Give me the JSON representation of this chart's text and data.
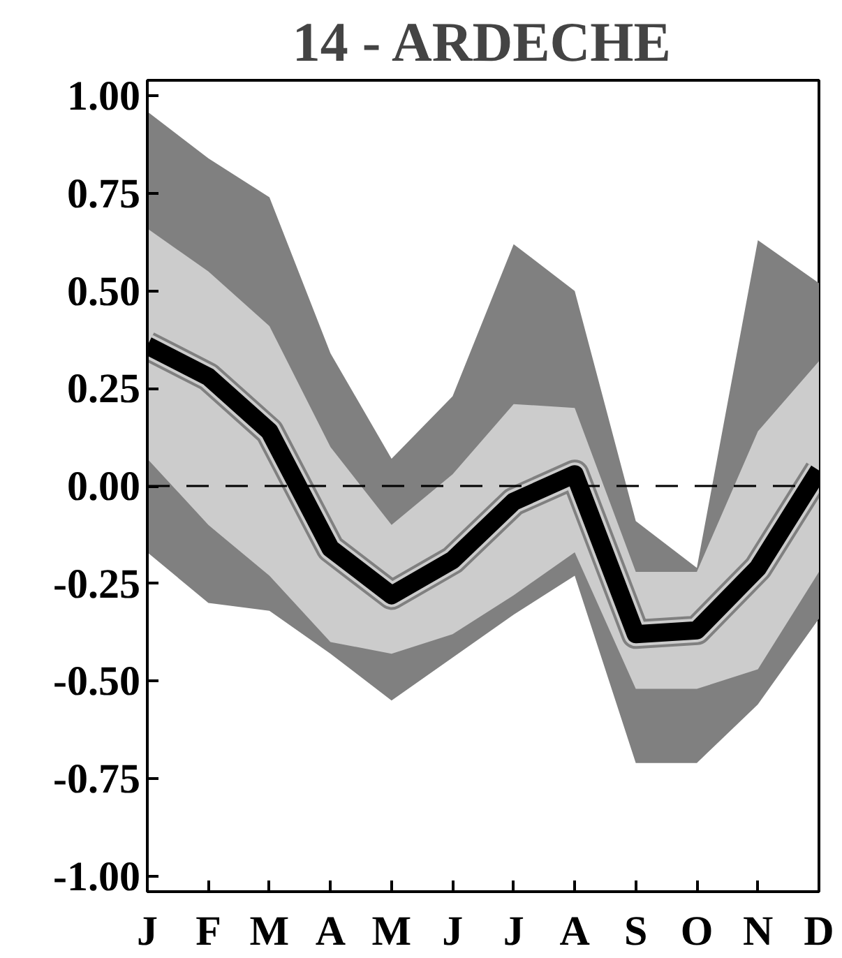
{
  "chart_data": {
    "type": "line",
    "title": "14 - ARDECHE",
    "categories": [
      "J",
      "F",
      "M",
      "A",
      "M",
      "J",
      "J",
      "A",
      "S",
      "O",
      "N",
      "D"
    ],
    "series": [
      {
        "color": "#808080",
        "values": [
          0.36,
          0.28,
          0.14,
          -0.16,
          -0.28,
          -0.19,
          -0.04,
          0.03,
          -0.38,
          -0.37,
          -0.21,
          0.04
        ],
        "upper": [
          0.96,
          0.84,
          0.74,
          0.34,
          0.07,
          0.23,
          0.62,
          0.5,
          -0.09,
          -0.21,
          0.63,
          0.52
        ],
        "lower": [
          -0.17,
          -0.3,
          -0.32,
          -0.43,
          -0.55,
          -0.44,
          -0.33,
          -0.23,
          -0.71,
          -0.71,
          -0.56,
          -0.34
        ]
      },
      {
        "color": "#cccccc",
        "values": [
          0.36,
          0.28,
          0.14,
          -0.16,
          -0.28,
          -0.19,
          -0.04,
          0.03,
          -0.38,
          -0.37,
          -0.21,
          0.04
        ],
        "upper": [
          0.66,
          0.55,
          0.41,
          0.1,
          -0.1,
          0.03,
          0.21,
          0.2,
          -0.22,
          -0.22,
          0.14,
          0.32
        ],
        "lower": [
          0.07,
          -0.1,
          -0.23,
          -0.4,
          -0.43,
          -0.38,
          -0.28,
          -0.17,
          -0.52,
          -0.52,
          -0.47,
          -0.22
        ]
      },
      {
        "color": "#000000",
        "values": [
          0.36,
          0.28,
          0.14,
          -0.16,
          -0.28,
          -0.19,
          -0.04,
          0.03,
          -0.38,
          -0.37,
          -0.21,
          0.04
        ]
      }
    ],
    "ylim": [
      -1.04,
      1.04
    ],
    "yticks": [
      {
        "value": 1,
        "label": "1.00"
      },
      {
        "value": 0.75,
        "label": "0.75"
      },
      {
        "value": 0.5,
        "label": "0.50"
      },
      {
        "value": 0.25,
        "label": "0.25"
      },
      {
        "value": 0,
        "label": "0.00"
      },
      {
        "value": -0.25,
        "label": "-0.25"
      },
      {
        "value": -0.5,
        "label": "-0.50"
      },
      {
        "value": -0.75,
        "label": "-0.75"
      },
      {
        "value": -1,
        "label": "-1.00"
      }
    ],
    "ref_lines": [
      {
        "axis": "y",
        "value": 0,
        "line_style": "dashed",
        "color": "#000000"
      }
    ]
  }
}
